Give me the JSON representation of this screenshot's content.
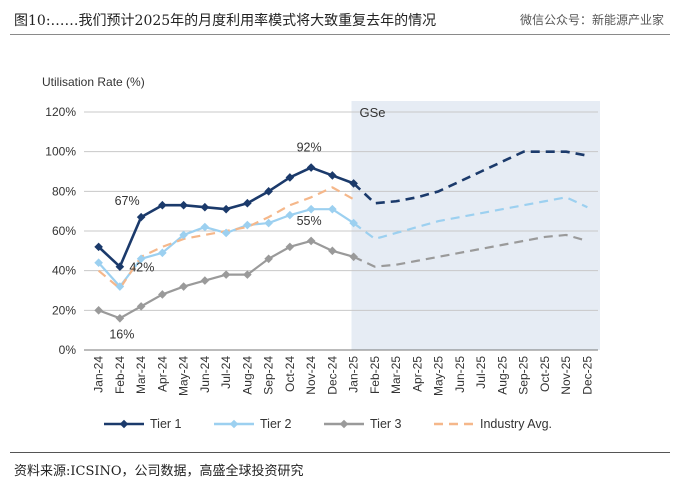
{
  "figure": {
    "title": "图10:……我们预计2025年的月度利用率模式将大致重复去年的情况",
    "watermark": "微信公众号：新能源产业家",
    "source": "资料来源:ICSINO，公司数据，高盛全球投资研究"
  },
  "chart_data": {
    "type": "line",
    "ylabel": "Utilisation Rate (%)",
    "ylim": [
      0,
      120
    ],
    "yticks": [
      0,
      20,
      40,
      60,
      80,
      100,
      120
    ],
    "ytick_labels": [
      "0%",
      "20%",
      "40%",
      "60%",
      "80%",
      "100%",
      "120%"
    ],
    "categories": [
      "Jan-24",
      "Feb-24",
      "Mar-24",
      "Apr-24",
      "May-24",
      "Jun-24",
      "Jul-24",
      "Aug-24",
      "Sep-24",
      "Oct-24",
      "Nov-24",
      "Dec-24",
      "Jan-25",
      "Feb-25",
      "Mar-25",
      "Apr-25",
      "May-25",
      "Jun-25",
      "Jul-25",
      "Aug-25",
      "Sep-25",
      "Oct-25",
      "Nov-25",
      "Dec-25"
    ],
    "forecast_label": "GSe",
    "forecast_start_index": 12,
    "colors": {
      "tier1": "#1b3a6b",
      "tier2": "#9cd0f0",
      "tier3": "#9a9a9a",
      "industry": "#f5b78a",
      "shade": "#e6ecf4"
    },
    "series": [
      {
        "key": "tier1",
        "name": "Tier 1",
        "values": [
          52,
          42,
          67,
          73,
          73,
          72,
          71,
          74,
          80,
          87,
          92,
          88,
          84,
          74,
          75,
          77,
          80,
          85,
          90,
          95,
          100,
          100,
          100,
          98
        ]
      },
      {
        "key": "tier2",
        "name": "Tier 2",
        "values": [
          44,
          32,
          46,
          49,
          58,
          62,
          59,
          63,
          64,
          68,
          71,
          71,
          64,
          56,
          59,
          62,
          65,
          67,
          69,
          71,
          73,
          75,
          77,
          72
        ]
      },
      {
        "key": "tier3",
        "name": "Tier 3",
        "values": [
          20,
          16,
          22,
          28,
          32,
          35,
          38,
          38,
          46,
          52,
          55,
          50,
          47,
          42,
          43,
          45,
          47,
          49,
          51,
          53,
          55,
          57,
          58,
          55
        ]
      },
      {
        "key": "industry",
        "name": "Industry Avg.",
        "values": [
          40,
          31,
          47,
          52,
          56,
          58,
          60,
          62,
          67,
          73,
          77,
          82,
          76,
          null,
          null,
          null,
          null,
          null,
          null,
          null,
          null,
          null,
          null,
          null
        ]
      }
    ],
    "annotations": [
      {
        "series": "tier1",
        "index": 2,
        "text": "67%"
      },
      {
        "series": "tier1",
        "index": 1,
        "text": "42%"
      },
      {
        "series": "tier1",
        "index": 10,
        "text": "92%"
      },
      {
        "series": "tier3",
        "index": 1,
        "text": "16%"
      },
      {
        "series": "tier3",
        "index": 10,
        "text": "55%"
      }
    ]
  }
}
